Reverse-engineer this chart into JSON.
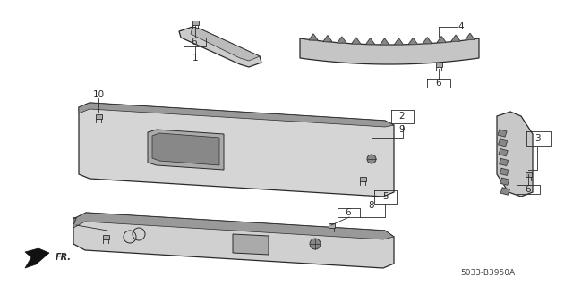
{
  "part_code": "5033-B3950A",
  "bg_color": "#ffffff",
  "lc": "#2a2a2a",
  "figsize": [
    6.4,
    3.19
  ],
  "dpi": 100
}
